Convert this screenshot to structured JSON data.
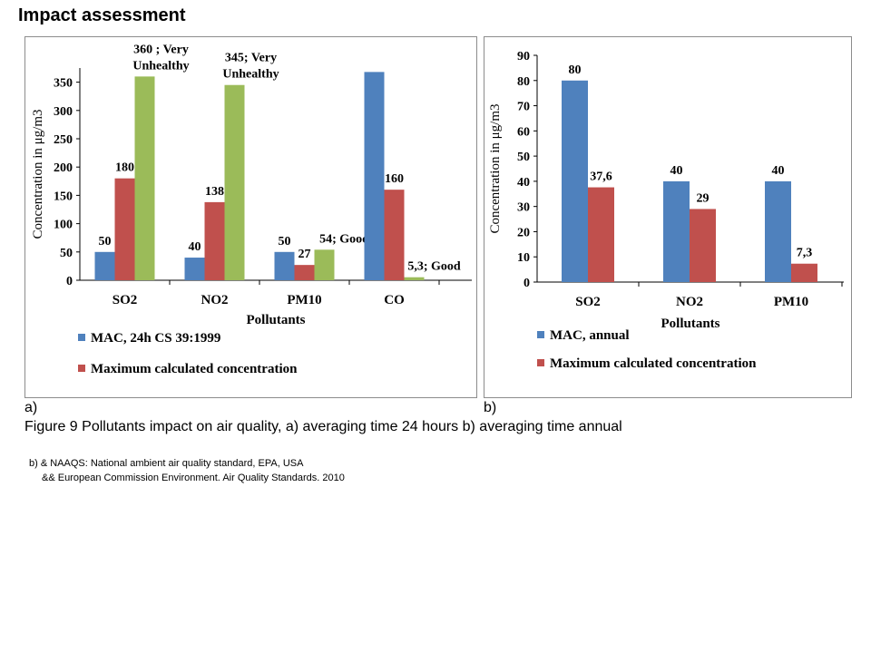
{
  "slide": {
    "title": "Impact assessment",
    "panel_a_label": "a)",
    "panel_b_label": "b)",
    "caption": "Figure 9 Pollutants impact on air quality, a) averaging time 24 hours b) averaging time annual",
    "footnote_1": "b) & NAAQS: National ambient air quality standard, EPA, USA",
    "footnote_2": "&& European Commission Environment. Air Quality Standards. 2010"
  },
  "colors": {
    "blue": "#4f81bd",
    "red": "#c0504d",
    "green": "#9bbb59",
    "grid": "#000000"
  },
  "chart_data": [
    {
      "id": "chartA",
      "type": "bar",
      "categories": [
        "SO2",
        "NO2",
        "PM10",
        "CO"
      ],
      "series": [
        {
          "name": "MAC, 24h CS 39:1999",
          "values": [
            50,
            40,
            50,
            368
          ],
          "labels": [
            "50",
            "40",
            "50",
            ""
          ]
        },
        {
          "name": "Maximum calculated concentration",
          "values": [
            180,
            138,
            27,
            160
          ],
          "labels": [
            "180",
            "138",
            "27",
            "160"
          ]
        },
        {
          "name": "",
          "values": [
            360,
            345,
            54,
            5.3
          ],
          "labels": [
            "360 ; Very\nUnhealthy",
            "345; Very\nUnhealthy",
            "54; Good",
            "5,3;  Good"
          ]
        }
      ],
      "legend": [
        "MAC, 24h CS 39:1999",
        "Maximum calculated concentration"
      ],
      "xlabel": "Pollutants",
      "ylabel": "Concentration in μg/m3",
      "ylim": [
        0,
        375
      ],
      "yticks": [
        0,
        50,
        100,
        150,
        200,
        250,
        300,
        350
      ],
      "legend_position": "bottom"
    },
    {
      "id": "chartB",
      "type": "bar",
      "categories": [
        "SO2",
        "NO2",
        "PM10"
      ],
      "series": [
        {
          "name": "MAC, annual",
          "values": [
            80,
            40,
            40
          ],
          "labels": [
            "80",
            "40",
            "40"
          ]
        },
        {
          "name": "Maximum calculated concentration",
          "values": [
            37.6,
            29,
            7.3
          ],
          "labels": [
            "37,6",
            "29",
            "7,3"
          ]
        }
      ],
      "legend": [
        "MAC, annual",
        "Maximum calculated concentration"
      ],
      "xlabel": "Pollutants",
      "ylabel": "Concentration in μg/m3",
      "ylim": [
        0,
        90
      ],
      "yticks": [
        0,
        10,
        20,
        30,
        40,
        50,
        60,
        70,
        80,
        90
      ],
      "legend_position": "bottom"
    }
  ]
}
